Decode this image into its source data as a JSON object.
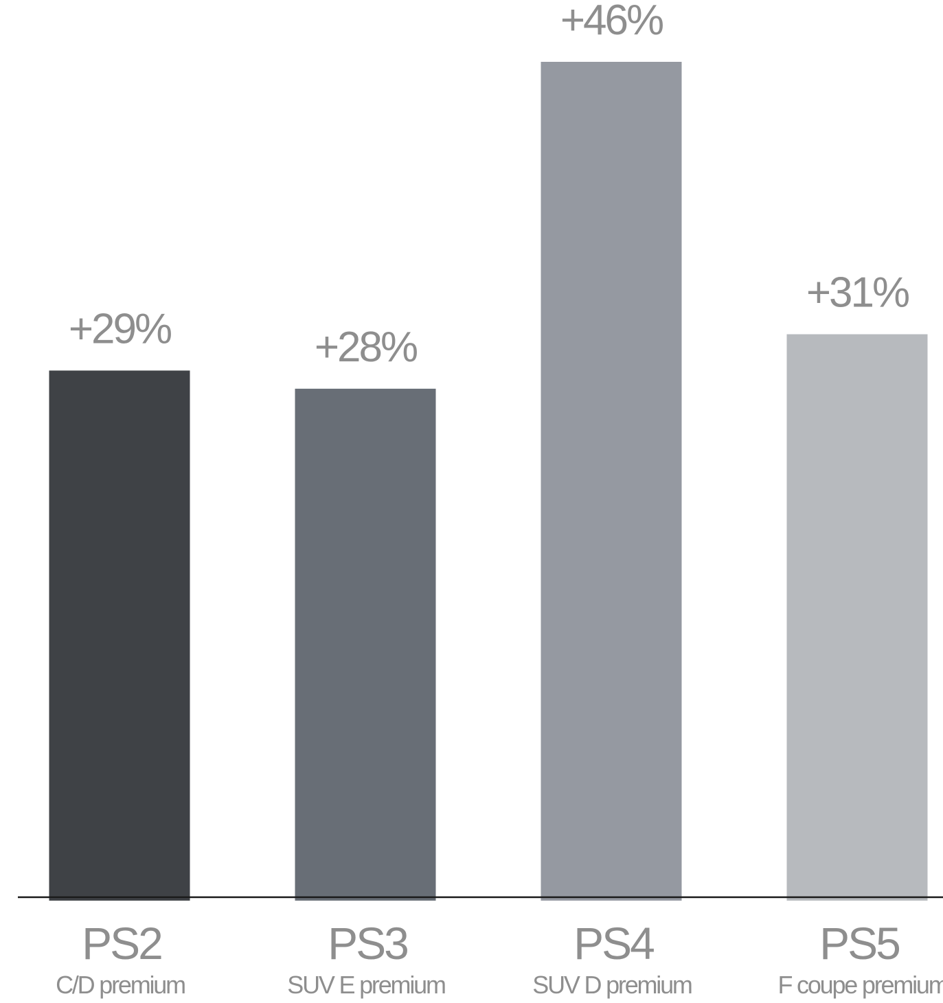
{
  "chart_data": {
    "type": "bar",
    "categories": [
      "PS2",
      "PS3",
      "PS4",
      "PS5"
    ],
    "subcategories": [
      "C/D premium",
      "SUV E premium",
      "SUV D premium",
      "F coupe premium"
    ],
    "values": [
      29,
      28,
      46,
      31
    ],
    "data_labels": [
      "+29%",
      "+28%",
      "+46%",
      "+31%"
    ],
    "colors": [
      "#3f4246",
      "#686e76",
      "#9599a1",
      "#b7babe"
    ],
    "label_color": "#8e8e8e",
    "axis_color": "#1a1a1a",
    "unit": "%",
    "ylim": [
      0,
      48
    ],
    "title": "",
    "xlabel": "",
    "ylabel": "",
    "grid": false,
    "legend": "none"
  }
}
